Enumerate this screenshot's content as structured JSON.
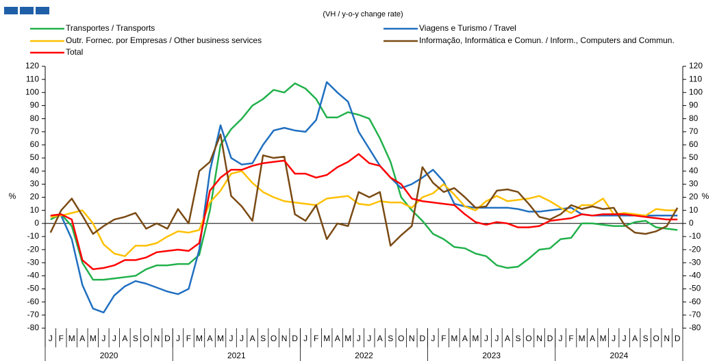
{
  "chart_data": {
    "type": "line",
    "subtitle": "(VH / y-o-y change rate)",
    "y_label": "%",
    "categories": [
      "J",
      "F",
      "M",
      "A",
      "M",
      "J",
      "J",
      "A",
      "S",
      "O",
      "N",
      "D",
      "J",
      "F",
      "M",
      "A",
      "M",
      "J",
      "J",
      "A",
      "S",
      "O",
      "N",
      "D",
      "J",
      "F",
      "M",
      "A",
      "M",
      "J",
      "J",
      "A",
      "S",
      "O",
      "N",
      "D",
      "J",
      "F",
      "M",
      "A",
      "M",
      "J",
      "J",
      "A",
      "S",
      "O",
      "N",
      "D",
      "J",
      "F",
      "M",
      "A",
      "M",
      "J",
      "J",
      "A",
      "S",
      "O",
      "N",
      "D"
    ],
    "years": [
      "2020",
      "2021",
      "2022",
      "2023",
      "2024"
    ],
    "ylim": [
      -80,
      120
    ],
    "yticks": [
      -80,
      -70,
      -60,
      -50,
      -40,
      -30,
      -20,
      -10,
      0,
      10,
      20,
      30,
      40,
      50,
      60,
      70,
      80,
      90,
      100,
      110,
      120
    ],
    "series": [
      {
        "name": "Transportes / Transports",
        "color": "#21b14b",
        "values": [
          3,
          7,
          -2,
          -30,
          -43,
          -43,
          -42,
          -41,
          -40,
          -35,
          -32,
          -32,
          -31,
          -31,
          -24,
          10,
          60,
          72,
          80,
          90,
          95,
          102,
          100,
          107,
          103,
          95,
          81,
          81,
          85,
          83,
          80,
          65,
          47,
          20,
          10,
          2,
          -8,
          -12,
          -18,
          -19,
          -23,
          -25,
          -32,
          -34,
          -33,
          -27,
          -20,
          -19,
          -12,
          -11,
          0,
          0,
          -1,
          -2,
          -2,
          1,
          2,
          -3,
          -4,
          -5
        ]
      },
      {
        "name": "Viagens e Turismo / Travel",
        "color": "#1f6fc0",
        "values": [
          6,
          6,
          -12,
          -47,
          -65,
          -68,
          -55,
          -48,
          -44,
          -46,
          -49,
          -52,
          -54,
          -50,
          -20,
          40,
          75,
          50,
          45,
          46,
          60,
          71,
          73,
          71,
          70,
          79,
          108,
          100,
          93,
          70,
          57,
          44,
          35,
          27,
          30,
          35,
          41,
          32,
          15,
          13,
          12,
          12,
          12,
          12,
          11,
          9,
          9,
          10,
          11,
          12,
          7,
          6,
          6,
          6,
          6,
          6,
          6,
          6,
          6,
          6
        ]
      },
      {
        "name": "Outr. Fornec. por Empresas / Other business services",
        "color": "#ffc000",
        "values": [
          5,
          6,
          8,
          10,
          0,
          -16,
          -23,
          -25,
          -17,
          -17,
          -15,
          -10,
          -6,
          -7,
          -5,
          16,
          25,
          38,
          40,
          31,
          24,
          20,
          17,
          16,
          15,
          14,
          19,
          20,
          21,
          15,
          14,
          17,
          16,
          16,
          12,
          20,
          23,
          30,
          22,
          13,
          10,
          17,
          21,
          17,
          18,
          19,
          21,
          17,
          12,
          8,
          14,
          14,
          19,
          7,
          8,
          7,
          6,
          11,
          10,
          10
        ]
      },
      {
        "name": "Informação, Informática e Comun. / Inform., Computers and Commun.",
        "color": "#7a4a14",
        "values": [
          -7,
          10,
          19,
          6,
          -8,
          -2,
          3,
          5,
          8,
          -4,
          0,
          -4,
          11,
          0,
          40,
          47,
          68,
          21,
          13,
          2,
          52,
          50,
          51,
          7,
          2,
          14,
          -12,
          0,
          -2,
          24,
          20,
          24,
          -17,
          -9,
          -2,
          43,
          31,
          24,
          27,
          20,
          12,
          13,
          25,
          26,
          24,
          15,
          5,
          3,
          7,
          14,
          11,
          13,
          11,
          12,
          -1,
          -7,
          -8,
          -6,
          -2,
          12
        ]
      },
      {
        "name": "Total",
        "color": "#ff0000",
        "values": [
          6,
          7,
          3,
          -28,
          -35,
          -34,
          -32,
          -28,
          -28,
          -26,
          -22,
          -21,
          -20,
          -21,
          -15,
          25,
          35,
          41,
          41,
          44,
          46,
          47,
          48,
          38,
          38,
          35,
          37,
          43,
          47,
          53,
          46,
          44,
          35,
          30,
          19,
          17,
          16,
          15,
          14,
          7,
          1,
          -1,
          1,
          0,
          -3,
          -3,
          -2,
          2,
          3,
          4,
          7,
          6,
          7,
          7,
          7,
          6,
          5,
          4,
          3,
          3
        ]
      }
    ]
  }
}
